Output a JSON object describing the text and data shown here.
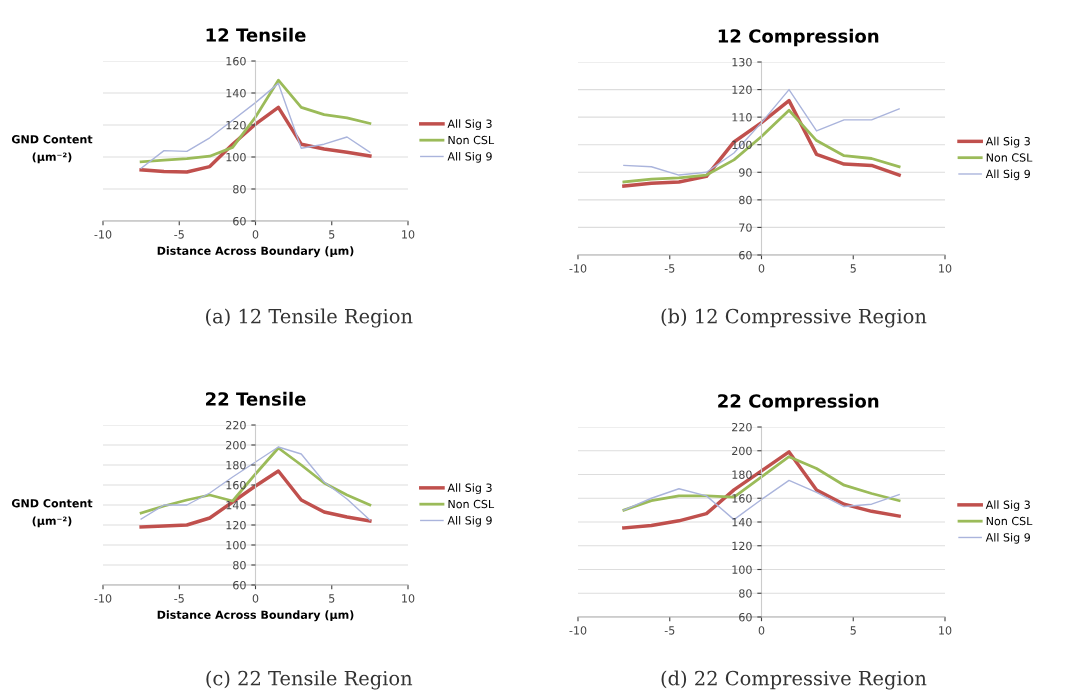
{
  "chart_data": [
    {
      "type": "line",
      "title": "12 Tensile",
      "xlabel": "Distance Across Boundary (µm)",
      "ylabel": "GND Content\n(µm⁻²)",
      "annotations": [
        "(a) 12 Tensile Region"
      ],
      "x": [
        -7.5,
        -6,
        -4.5,
        -3,
        -1.5,
        0,
        1.5,
        3,
        4.5,
        6,
        7.5
      ],
      "xlim": [
        -10,
        10
      ],
      "xticks": [
        -10,
        -5,
        0,
        5,
        10
      ],
      "ylim": [
        60,
        160
      ],
      "yticks": [
        60,
        80,
        100,
        120,
        140,
        160
      ],
      "grid": "y",
      "legend": "right",
      "series": [
        {
          "name": "All Sig 3",
          "color": "#c0504d",
          "values": [
            92,
            91,
            90.6,
            94,
            108,
            120.5,
            131,
            108,
            105,
            103,
            100.6
          ]
        },
        {
          "name": "Non CSL",
          "color": "#9bbb59",
          "values": [
            97,
            98,
            99,
            100.5,
            106,
            125,
            148,
            131,
            126.5,
            124.5,
            121
          ]
        },
        {
          "name": "All Sig 9",
          "color": "#aab4dc",
          "values": [
            93,
            104,
            103.5,
            112,
            123,
            134,
            146,
            105.5,
            108,
            112.5,
            103
          ]
        }
      ]
    },
    {
      "type": "line",
      "title": "12 Compression",
      "annotations": [
        "(b) 12 Compressive Region"
      ],
      "x": [
        -7.5,
        -6,
        -4.5,
        -3,
        -1.5,
        0,
        1.5,
        3,
        4.5,
        6,
        7.5
      ],
      "xlim": [
        -10,
        10
      ],
      "xticks": [
        -10,
        -5,
        0,
        5,
        10
      ],
      "ylim": [
        60,
        130
      ],
      "yticks": [
        60,
        70,
        80,
        90,
        100,
        110,
        120,
        130
      ],
      "grid": "y",
      "legend": "right",
      "series": [
        {
          "name": "All Sig 3",
          "color": "#c0504d",
          "values": [
            85,
            86,
            86.5,
            88.5,
            101,
            108,
            116,
            96.5,
            93,
            92.5,
            89
          ]
        },
        {
          "name": "Non CSL",
          "color": "#9bbb59",
          "values": [
            86.5,
            87.5,
            88,
            89,
            94.5,
            103,
            112.5,
            101.5,
            96,
            95,
            92
          ]
        },
        {
          "name": "All Sig 9",
          "color": "#aab4dc",
          "values": [
            92.5,
            92,
            89,
            90,
            97,
            108,
            120,
            105,
            109,
            109,
            113
          ]
        }
      ]
    },
    {
      "type": "line",
      "title": "22 Tensile",
      "xlabel": "Distance Across Boundary (µm)",
      "ylabel": "GND Content\n(µm⁻²)",
      "annotations": [
        "(c) 22 Tensile Region"
      ],
      "x": [
        -7.5,
        -6,
        -4.5,
        -3,
        -1.5,
        0,
        1.5,
        3,
        4.5,
        6,
        7.5
      ],
      "xlim": [
        -10,
        10
      ],
      "xticks": [
        -10,
        -5,
        0,
        5,
        10
      ],
      "ylim": [
        60,
        220
      ],
      "yticks": [
        60,
        80,
        100,
        120,
        140,
        160,
        180,
        200,
        220
      ],
      "grid": "y",
      "legend": "right",
      "series": [
        {
          "name": "All Sig 3",
          "color": "#c0504d",
          "values": [
            118,
            119,
            120,
            127,
            143,
            159,
            174,
            145,
            133,
            128,
            124
          ]
        },
        {
          "name": "Non CSL",
          "color": "#9bbb59",
          "values": [
            132,
            139,
            145,
            150,
            144,
            171,
            197,
            180,
            162,
            150,
            140
          ]
        },
        {
          "name": "All Sig 9",
          "color": "#aab4dc",
          "values": [
            126,
            140,
            140,
            152,
            168,
            183,
            198,
            191,
            163,
            146,
            125
          ]
        }
      ]
    },
    {
      "type": "line",
      "title": "22 Compression",
      "annotations": [
        "(d) 22 Compressive Region"
      ],
      "x": [
        -7.5,
        -6,
        -4.5,
        -3,
        -1.5,
        0,
        1.5,
        3,
        4.5,
        6,
        7.5
      ],
      "xlim": [
        -10,
        10
      ],
      "xticks": [
        -10,
        -5,
        0,
        5,
        10
      ],
      "ylim": [
        60,
        220
      ],
      "yticks": [
        60,
        80,
        100,
        120,
        140,
        160,
        180,
        200,
        220
      ],
      "grid": "y",
      "legend": "right",
      "series": [
        {
          "name": "All Sig 3",
          "color": "#c0504d",
          "values": [
            135,
            137,
            141,
            147,
            167,
            183,
            199,
            167,
            155,
            149,
            145
          ]
        },
        {
          "name": "Non CSL",
          "color": "#9bbb59",
          "values": [
            150,
            158,
            162,
            162,
            161,
            178,
            195,
            185,
            171,
            164,
            158
          ]
        },
        {
          "name": "All Sig 9",
          "color": "#aab4dc",
          "values": [
            150,
            160,
            168,
            162,
            142,
            159,
            175,
            165,
            153,
            155,
            163
          ]
        }
      ]
    }
  ]
}
